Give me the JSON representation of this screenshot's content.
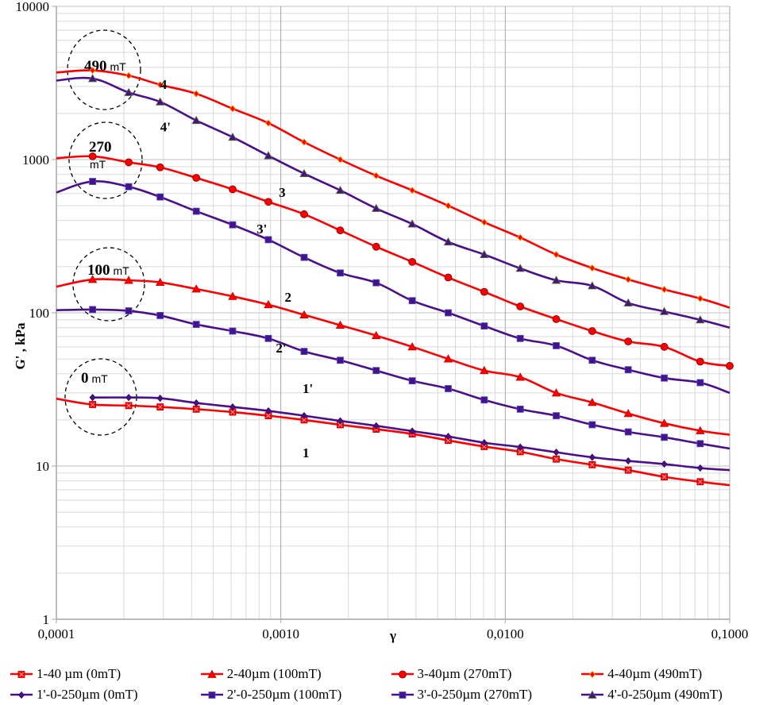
{
  "chart_data": {
    "type": "line",
    "title": "",
    "xlabel": "γ",
    "ylabel": "G' , kPa",
    "xscale": "log",
    "yscale": "log",
    "xlim": [
      0.0001,
      0.1
    ],
    "ylim": [
      1,
      10000
    ],
    "grid": true,
    "x_tick_labels": [
      "0,0001",
      "0,0010",
      "0,0100",
      "0,1000"
    ],
    "y_tick_labels": [
      "1",
      "10",
      "100",
      "1000",
      "10000"
    ],
    "legend_position": "bottom",
    "series": [
      {
        "id": "1",
        "name": "1-40 µm (0mT)",
        "color": "#ff0000",
        "marker": "square-x",
        "x": [
          0.0001,
          0.000145,
          0.00021,
          0.00029,
          0.00042,
          0.00061,
          0.00088,
          0.00127,
          0.00184,
          0.00266,
          0.00385,
          0.00557,
          0.00806,
          0.01166,
          0.01687,
          0.0244,
          0.0353,
          0.0511,
          0.0739,
          0.1
        ],
        "y": [
          27.5,
          25.2,
          24.8,
          24.3,
          23.5,
          22.5,
          21.3,
          20.0,
          18.6,
          17.4,
          16.2,
          14.7,
          13.4,
          12.4,
          11.1,
          10.2,
          9.4,
          8.5,
          7.9,
          7.5
        ]
      },
      {
        "id": "1'",
        "name": "1'-0-250µm (0mT)",
        "color": "#4b0f8c",
        "marker": "diamond",
        "x": [
          0.000145,
          0.00021,
          0.00029,
          0.00042,
          0.00061,
          0.00088,
          0.00127,
          0.00184,
          0.00266,
          0.00385,
          0.00557,
          0.00806,
          0.01166,
          0.01687,
          0.0244,
          0.0353,
          0.0511,
          0.0739,
          0.1
        ],
        "y": [
          28.0,
          28.0,
          27.7,
          25.8,
          24.3,
          22.9,
          21.3,
          19.7,
          18.3,
          16.9,
          15.6,
          14.2,
          13.3,
          12.3,
          11.4,
          10.8,
          10.3,
          9.7,
          9.4
        ]
      },
      {
        "id": "2",
        "name": "2-40µm (100mT)",
        "color": "#ff0000",
        "marker": "triangle",
        "x": [
          0.0001,
          0.000145,
          0.00021,
          0.00029,
          0.00042,
          0.00061,
          0.00088,
          0.00127,
          0.00184,
          0.00266,
          0.00385,
          0.00557,
          0.00806,
          0.01166,
          0.01687,
          0.0244,
          0.0353,
          0.0511,
          0.0739,
          0.1
        ],
        "y": [
          148,
          165,
          163,
          158,
          143,
          128,
          113,
          97,
          83,
          71,
          60,
          50,
          42,
          38,
          30,
          26,
          22,
          19,
          17,
          16
        ]
      },
      {
        "id": "2'",
        "name": "2'-0-250µm (100mT)",
        "color": "#4b0f8c",
        "marker": "square",
        "x": [
          0.0001,
          0.000145,
          0.00021,
          0.00029,
          0.00042,
          0.00061,
          0.00088,
          0.00127,
          0.00184,
          0.00266,
          0.00385,
          0.00557,
          0.00806,
          0.01166,
          0.01687,
          0.0244,
          0.0353,
          0.0511,
          0.0739,
          0.1
        ],
        "y": [
          104,
          105,
          103,
          96,
          84,
          76,
          68,
          56,
          49,
          42,
          36,
          32,
          27,
          23.5,
          21.3,
          18.6,
          16.7,
          15.4,
          14.0,
          13.0
        ]
      },
      {
        "id": "3",
        "name": "3-40µm (270mT)",
        "color": "#ff0000",
        "marker": "circle",
        "x": [
          0.0001,
          0.000145,
          0.00021,
          0.00029,
          0.00042,
          0.00061,
          0.00088,
          0.00127,
          0.00184,
          0.00266,
          0.00385,
          0.00557,
          0.00806,
          0.01166,
          0.01687,
          0.0244,
          0.0353,
          0.0511,
          0.0739,
          0.1
        ],
        "y": [
          1020,
          1050,
          960,
          890,
          760,
          640,
          530,
          440,
          345,
          270,
          215,
          170,
          137,
          110,
          91,
          76,
          65,
          60,
          48,
          45
        ]
      },
      {
        "id": "3'",
        "name": "3'-0-250µm (270mT)",
        "color": "#4b0f8c",
        "marker": "square",
        "x": [
          0.0001,
          0.000145,
          0.00021,
          0.00029,
          0.00042,
          0.00061,
          0.00088,
          0.00127,
          0.00184,
          0.00266,
          0.00385,
          0.00557,
          0.00806,
          0.01166,
          0.01687,
          0.0244,
          0.0353,
          0.0511,
          0.0739,
          0.1
        ],
        "y": [
          610,
          720,
          665,
          570,
          460,
          375,
          300,
          230,
          182,
          157,
          120,
          100,
          82,
          68,
          61,
          49,
          42.5,
          37.5,
          35,
          30
        ]
      },
      {
        "id": "4",
        "name": "4-40µm (490mT)",
        "color": "#ff0000",
        "marker": "diamond",
        "x": [
          0.0001,
          0.000145,
          0.00021,
          0.00029,
          0.00042,
          0.00061,
          0.00088,
          0.00127,
          0.00184,
          0.00266,
          0.00385,
          0.00557,
          0.00806,
          0.01166,
          0.01687,
          0.0244,
          0.0353,
          0.0511,
          0.0739,
          0.1
        ],
        "y": [
          3700,
          3820,
          3530,
          3080,
          2690,
          2150,
          1730,
          1300,
          1000,
          785,
          630,
          500,
          390,
          310,
          240,
          196,
          165,
          142,
          124,
          108
        ]
      },
      {
        "id": "4'",
        "name": "4'-0-250µm (490mT)",
        "color": "#4b0f8c",
        "marker": "triangle",
        "x": [
          0.0001,
          0.000145,
          0.00021,
          0.00029,
          0.00042,
          0.00061,
          0.00088,
          0.00127,
          0.00184,
          0.00266,
          0.00385,
          0.00557,
          0.00806,
          0.01166,
          0.01687,
          0.0244,
          0.0353,
          0.0511,
          0.0739,
          0.1
        ],
        "y": [
          3280,
          3380,
          2740,
          2380,
          1800,
          1400,
          1060,
          810,
          630,
          480,
          380,
          290,
          240,
          195,
          163,
          150,
          116,
          102,
          90,
          80
        ]
      }
    ],
    "curve_labels": [
      {
        "text": "4",
        "x": 0.00029,
        "y": 2900
      },
      {
        "text": "4'",
        "x": 0.00029,
        "y": 1530
      },
      {
        "text": "3",
        "x": 0.00098,
        "y": 570
      },
      {
        "text": "3'",
        "x": 0.00078,
        "y": 330
      },
      {
        "text": "2",
        "x": 0.00104,
        "y": 118
      },
      {
        "text": "2'",
        "x": 0.00095,
        "y": 55
      },
      {
        "text": "1'",
        "x": 0.00125,
        "y": 30
      },
      {
        "text": "1",
        "x": 0.00125,
        "y": 11.4
      }
    ],
    "annotations": [
      {
        "big": "490",
        "small": "mT",
        "layout": "inline"
      },
      {
        "big": "270",
        "small": "mT",
        "layout": "stacked"
      },
      {
        "big": "100",
        "small": "mT",
        "layout": "inline"
      },
      {
        "big": "0",
        "small": "mT",
        "layout": "inline"
      }
    ]
  },
  "legend": {
    "items": [
      {
        "label": "1-40 µm (0mT)",
        "color": "#ff0000",
        "marker": "square-x"
      },
      {
        "label": "2-40µm (100mT)",
        "color": "#ff0000",
        "marker": "triangle"
      },
      {
        "label": "3-40µm (270mT)",
        "color": "#ff0000",
        "marker": "circle"
      },
      {
        "label": "4-40µm (490mT)",
        "color": "#ff0000",
        "marker": "diamond"
      },
      {
        "label": "1'-0-250µm (0mT)",
        "color": "#4b0f8c",
        "marker": "diamond"
      },
      {
        "label": "2'-0-250µm (100mT)",
        "color": "#4b0f8c",
        "marker": "square"
      },
      {
        "label": "3'-0-250µm (270mT)",
        "color": "#4b0f8c",
        "marker": "square"
      },
      {
        "label": "4'-0-250µm (490mT)",
        "color": "#4b0f8c",
        "marker": "triangle"
      }
    ]
  }
}
